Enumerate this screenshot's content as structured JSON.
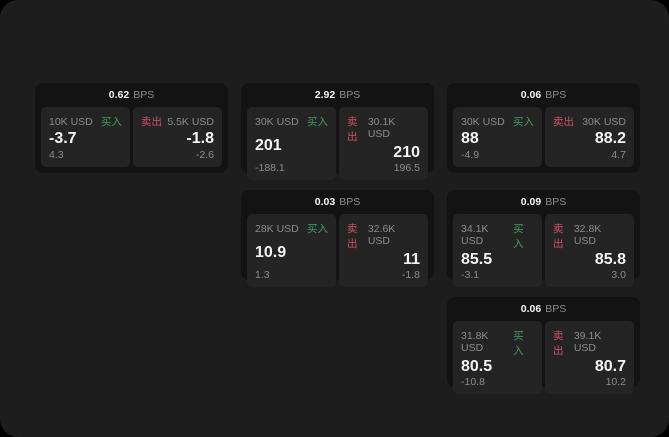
{
  "theme": {
    "page_bg": "#000000",
    "panel_bg": "#1d1d1d",
    "card_bg": "#131313",
    "tile_bg": "#242424",
    "text_primary": "#f5f5f5",
    "text_secondary": "#8c8c8c",
    "buy_color": "#3e9e63",
    "sell_color": "#cf4f67"
  },
  "labels": {
    "bps": "BPS",
    "buy": "买入",
    "sell": "卖出"
  },
  "cards": [
    {
      "spread": "0.62",
      "row": 1,
      "col": 1,
      "buy": {
        "amount": "10K USD",
        "price": "-3.7",
        "delta": "4.3"
      },
      "sell": {
        "amount": "5.5K USD",
        "price": "-1.8",
        "delta": "-2.6"
      }
    },
    {
      "spread": "2.92",
      "row": 1,
      "col": 2,
      "buy": {
        "amount": "30K USD",
        "price": "201",
        "delta": "-188.1"
      },
      "sell": {
        "amount": "30.1K USD",
        "price": "210",
        "delta": "196.5"
      }
    },
    {
      "spread": "0.06",
      "row": 1,
      "col": 3,
      "buy": {
        "amount": "30K USD",
        "price": "88",
        "delta": "-4.9"
      },
      "sell": {
        "amount": "30K USD",
        "price": "88.2",
        "delta": "4.7"
      }
    },
    {
      "spread": "0.03",
      "row": 2,
      "col": 2,
      "buy": {
        "amount": "28K USD",
        "price": "10.9",
        "delta": "1.3"
      },
      "sell": {
        "amount": "32.6K USD",
        "price": "11",
        "delta": "-1.8"
      }
    },
    {
      "spread": "0.09",
      "row": 2,
      "col": 3,
      "buy": {
        "amount": "34.1K USD",
        "price": "85.5",
        "delta": "-3.1"
      },
      "sell": {
        "amount": "32.8K USD",
        "price": "85.8",
        "delta": "3.0"
      }
    },
    {
      "spread": "0.06",
      "row": 3,
      "col": 3,
      "buy": {
        "amount": "31.8K USD",
        "price": "80.5",
        "delta": "-10.8"
      },
      "sell": {
        "amount": "39.1K USD",
        "price": "80.7",
        "delta": "10.2"
      }
    }
  ]
}
